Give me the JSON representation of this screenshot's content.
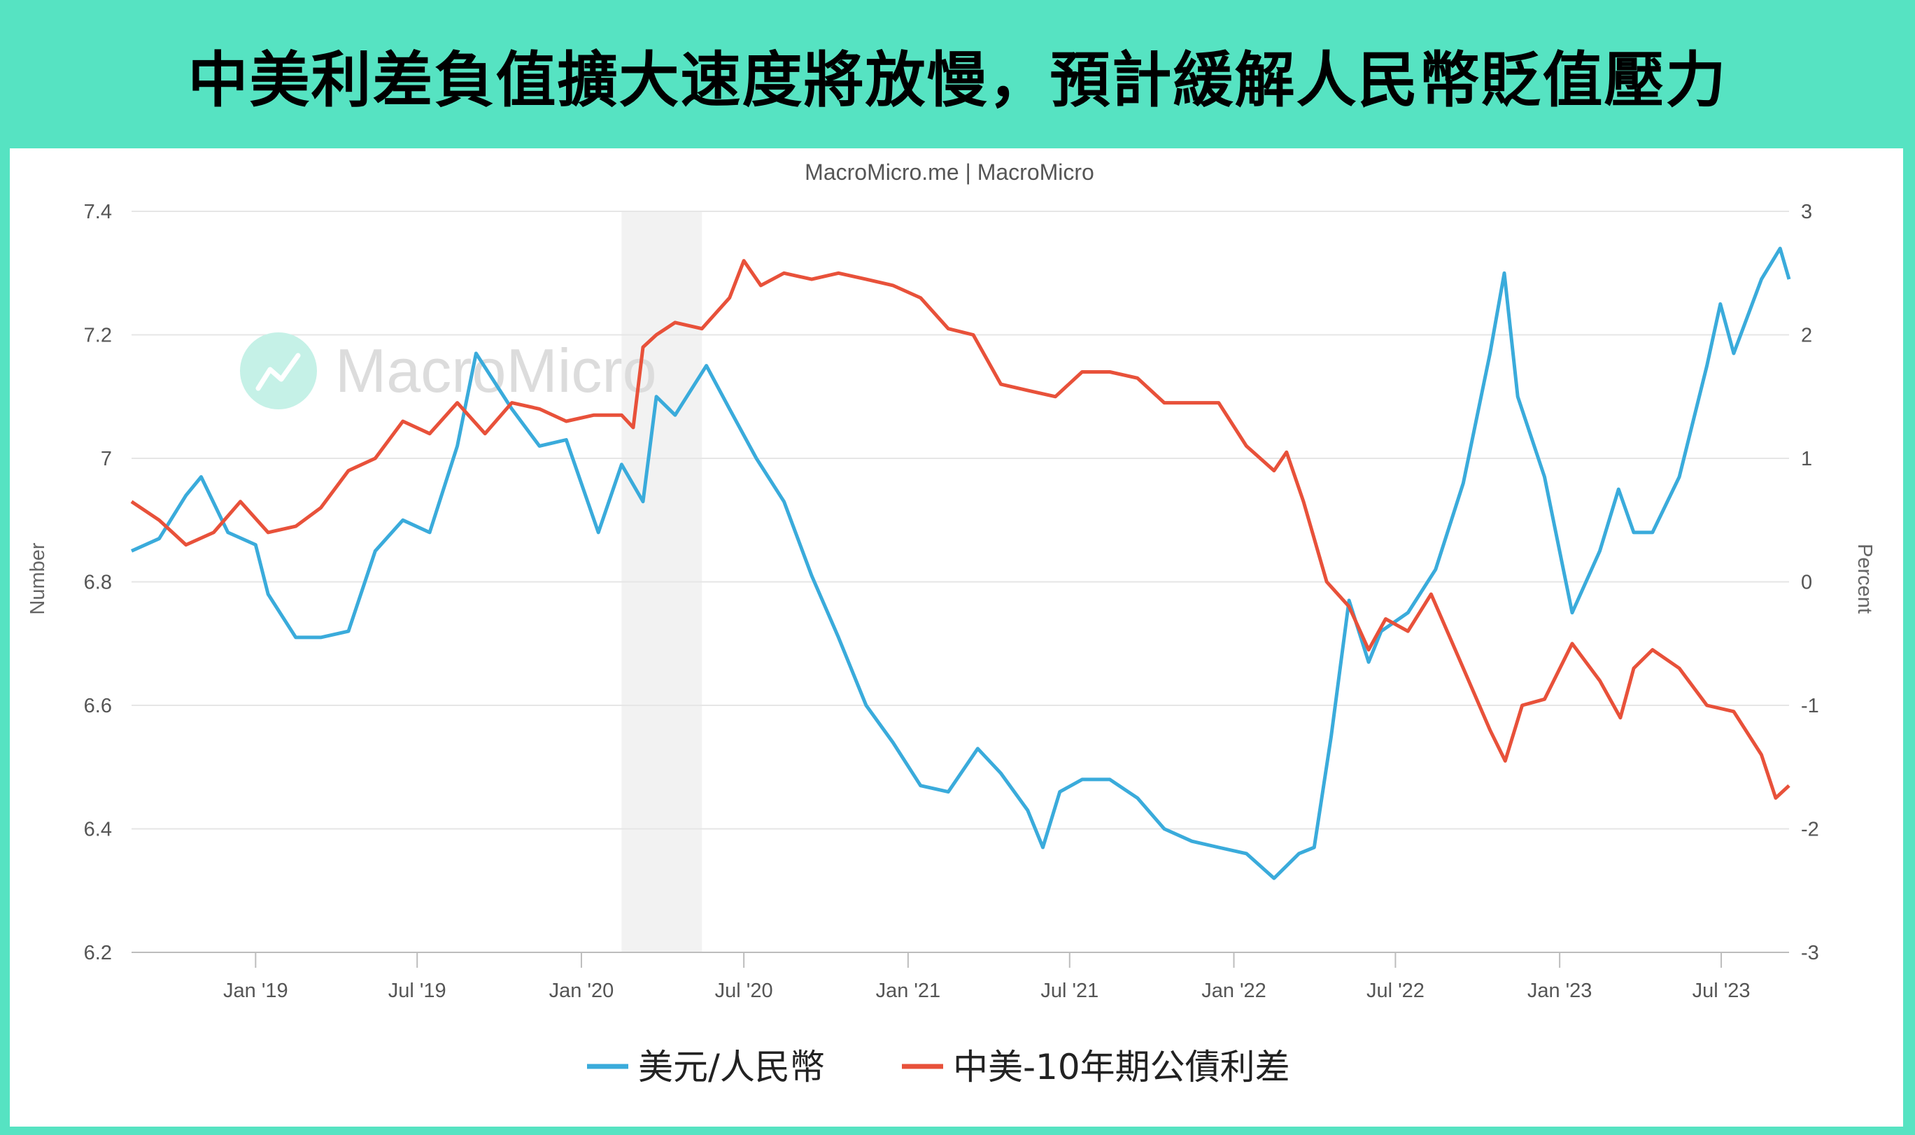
{
  "header": {
    "title": "中美利差負值擴大速度將放慢，預計緩解人民幣貶值壓力"
  },
  "source": "MacroMicro.me | MacroMicro",
  "watermark": {
    "text": "MacroMicro",
    "logo": "chart-trend-icon"
  },
  "colors": {
    "banner": "#56e3c2",
    "usdcny": "#3aabdb",
    "spread": "#e8513a",
    "recession": "#f2f2f2"
  },
  "chart_data": {
    "type": "line",
    "x_ticks": [
      "Jan '19",
      "Jul '19",
      "Jan '20",
      "Jul '20",
      "Jan '21",
      "Jul '21",
      "Jan '22",
      "Jul '22",
      "Jan '23",
      "Jul '23"
    ],
    "xlim": [
      "2018-08-15",
      "2023-09-15"
    ],
    "shaded_range": [
      "2020-02-15",
      "2020-05-15"
    ],
    "y_left": {
      "label": "Number",
      "ticks": [
        "7.4",
        "7.2",
        "7",
        "6.8",
        "6.6",
        "6.4",
        "6.2"
      ],
      "ylim": [
        6.2,
        7.4
      ]
    },
    "y_right": {
      "label": "Percent",
      "ticks": [
        "3",
        "2",
        "1",
        "0",
        "-1",
        "-2",
        "-3"
      ],
      "ylim": [
        -3,
        3
      ]
    },
    "series": [
      {
        "name": "美元/人民幣",
        "axis": "left",
        "color": "#3aabdb",
        "points": [
          [
            "2018-08-15",
            6.85
          ],
          [
            "2018-09-15",
            6.87
          ],
          [
            "2018-10-15",
            6.94
          ],
          [
            "2018-11-01",
            6.97
          ],
          [
            "2018-12-01",
            6.88
          ],
          [
            "2019-01-01",
            6.86
          ],
          [
            "2019-01-15",
            6.78
          ],
          [
            "2019-02-15",
            6.71
          ],
          [
            "2019-03-15",
            6.71
          ],
          [
            "2019-04-15",
            6.72
          ],
          [
            "2019-05-15",
            6.85
          ],
          [
            "2019-06-15",
            6.9
          ],
          [
            "2019-07-15",
            6.88
          ],
          [
            "2019-08-15",
            7.02
          ],
          [
            "2019-09-05",
            7.17
          ],
          [
            "2019-10-15",
            7.08
          ],
          [
            "2019-11-15",
            7.02
          ],
          [
            "2019-12-15",
            7.03
          ],
          [
            "2020-01-20",
            6.88
          ],
          [
            "2020-02-15",
            6.99
          ],
          [
            "2020-03-10",
            6.93
          ],
          [
            "2020-03-25",
            7.1
          ],
          [
            "2020-04-15",
            7.07
          ],
          [
            "2020-05-20",
            7.15
          ],
          [
            "2020-06-15",
            7.08
          ],
          [
            "2020-07-15",
            7.0
          ],
          [
            "2020-08-15",
            6.93
          ],
          [
            "2020-09-15",
            6.81
          ],
          [
            "2020-10-15",
            6.71
          ],
          [
            "2020-11-15",
            6.6
          ],
          [
            "2020-12-15",
            6.54
          ],
          [
            "2021-01-15",
            6.47
          ],
          [
            "2021-02-15",
            6.46
          ],
          [
            "2021-03-20",
            6.53
          ],
          [
            "2021-04-15",
            6.49
          ],
          [
            "2021-05-15",
            6.43
          ],
          [
            "2021-06-01",
            6.37
          ],
          [
            "2021-06-20",
            6.46
          ],
          [
            "2021-07-15",
            6.48
          ],
          [
            "2021-08-15",
            6.48
          ],
          [
            "2021-09-15",
            6.45
          ],
          [
            "2021-10-15",
            6.4
          ],
          [
            "2021-11-15",
            6.38
          ],
          [
            "2021-12-15",
            6.37
          ],
          [
            "2022-01-15",
            6.36
          ],
          [
            "2022-02-15",
            6.32
          ],
          [
            "2022-03-15",
            6.36
          ],
          [
            "2022-04-01",
            6.37
          ],
          [
            "2022-04-20",
            6.55
          ],
          [
            "2022-05-10",
            6.77
          ],
          [
            "2022-06-01",
            6.67
          ],
          [
            "2022-06-15",
            6.72
          ],
          [
            "2022-07-15",
            6.75
          ],
          [
            "2022-08-15",
            6.82
          ],
          [
            "2022-09-15",
            6.96
          ],
          [
            "2022-10-15",
            7.17
          ],
          [
            "2022-10-31",
            7.3
          ],
          [
            "2022-11-15",
            7.1
          ],
          [
            "2022-12-15",
            6.97
          ],
          [
            "2023-01-15",
            6.75
          ],
          [
            "2023-02-15",
            6.85
          ],
          [
            "2023-03-08",
            6.95
          ],
          [
            "2023-03-25",
            6.88
          ],
          [
            "2023-04-15",
            6.88
          ],
          [
            "2023-05-15",
            6.97
          ],
          [
            "2023-06-15",
            7.15
          ],
          [
            "2023-06-30",
            7.25
          ],
          [
            "2023-07-15",
            7.17
          ],
          [
            "2023-08-15",
            7.29
          ],
          [
            "2023-09-05",
            7.34
          ],
          [
            "2023-09-15",
            7.29
          ]
        ]
      },
      {
        "name": "中美-10年期公債利差",
        "axis": "right",
        "color": "#e8513a",
        "points": [
          [
            "2018-08-15",
            0.65
          ],
          [
            "2018-09-15",
            0.5
          ],
          [
            "2018-10-15",
            0.3
          ],
          [
            "2018-11-15",
            0.4
          ],
          [
            "2018-12-15",
            0.65
          ],
          [
            "2019-01-15",
            0.4
          ],
          [
            "2019-02-15",
            0.45
          ],
          [
            "2019-03-15",
            0.6
          ],
          [
            "2019-04-15",
            0.9
          ],
          [
            "2019-05-15",
            1.0
          ],
          [
            "2019-06-15",
            1.3
          ],
          [
            "2019-07-15",
            1.2
          ],
          [
            "2019-08-15",
            1.45
          ],
          [
            "2019-09-15",
            1.2
          ],
          [
            "2019-10-15",
            1.45
          ],
          [
            "2019-11-15",
            1.4
          ],
          [
            "2019-12-15",
            1.3
          ],
          [
            "2020-01-15",
            1.35
          ],
          [
            "2020-02-15",
            1.35
          ],
          [
            "2020-02-28",
            1.25
          ],
          [
            "2020-03-10",
            1.9
          ],
          [
            "2020-03-25",
            2.0
          ],
          [
            "2020-04-15",
            2.1
          ],
          [
            "2020-05-15",
            2.05
          ],
          [
            "2020-06-15",
            2.3
          ],
          [
            "2020-07-01",
            2.6
          ],
          [
            "2020-07-20",
            2.4
          ],
          [
            "2020-08-15",
            2.5
          ],
          [
            "2020-09-15",
            2.45
          ],
          [
            "2020-10-15",
            2.5
          ],
          [
            "2020-11-15",
            2.45
          ],
          [
            "2020-12-15",
            2.4
          ],
          [
            "2021-01-15",
            2.3
          ],
          [
            "2021-02-15",
            2.05
          ],
          [
            "2021-03-15",
            2.0
          ],
          [
            "2021-04-15",
            1.6
          ],
          [
            "2021-05-15",
            1.55
          ],
          [
            "2021-06-15",
            1.5
          ],
          [
            "2021-07-15",
            1.7
          ],
          [
            "2021-08-15",
            1.7
          ],
          [
            "2021-09-15",
            1.65
          ],
          [
            "2021-10-15",
            1.45
          ],
          [
            "2021-11-15",
            1.45
          ],
          [
            "2021-12-15",
            1.45
          ],
          [
            "2022-01-15",
            1.1
          ],
          [
            "2022-02-15",
            0.9
          ],
          [
            "2022-03-01",
            1.05
          ],
          [
            "2022-03-20",
            0.65
          ],
          [
            "2022-04-15",
            0.0
          ],
          [
            "2022-05-10",
            -0.2
          ],
          [
            "2022-06-01",
            -0.55
          ],
          [
            "2022-06-20",
            -0.3
          ],
          [
            "2022-07-15",
            -0.4
          ],
          [
            "2022-08-10",
            -0.1
          ],
          [
            "2022-09-15",
            -0.7
          ],
          [
            "2022-10-15",
            -1.2
          ],
          [
            "2022-11-01",
            -1.45
          ],
          [
            "2022-11-20",
            -1.0
          ],
          [
            "2022-12-15",
            -0.95
          ],
          [
            "2023-01-15",
            -0.5
          ],
          [
            "2023-02-15",
            -0.8
          ],
          [
            "2023-03-10",
            -1.1
          ],
          [
            "2023-03-25",
            -0.7
          ],
          [
            "2023-04-15",
            -0.55
          ],
          [
            "2023-05-15",
            -0.7
          ],
          [
            "2023-06-15",
            -1.0
          ],
          [
            "2023-07-15",
            -1.05
          ],
          [
            "2023-08-15",
            -1.4
          ],
          [
            "2023-08-31",
            -1.75
          ],
          [
            "2023-09-15",
            -1.65
          ]
        ]
      }
    ]
  }
}
